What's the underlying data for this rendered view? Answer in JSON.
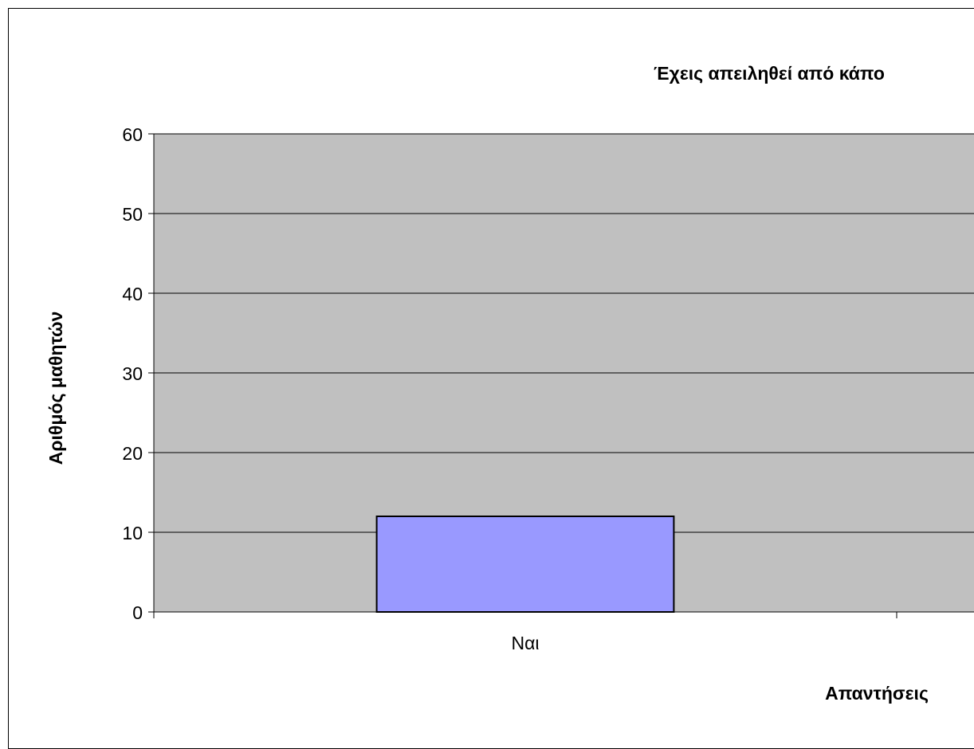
{
  "chart_data": {
    "type": "bar",
    "title": "Έχεις απειληθεί από κάπο",
    "xlabel": "Απαντήσεις",
    "ylabel": "Αριθμός μαθητών",
    "categories": [
      "Ναι"
    ],
    "values": [
      12
    ],
    "ylim": [
      0,
      60
    ],
    "yticks": [
      0,
      10,
      20,
      30,
      40,
      50,
      60
    ],
    "grid": true,
    "colors": {
      "plot_background": "#c0c0c0",
      "bar_fill": "#9999ff",
      "bar_stroke": "#000000",
      "gridline": "#000000"
    }
  }
}
